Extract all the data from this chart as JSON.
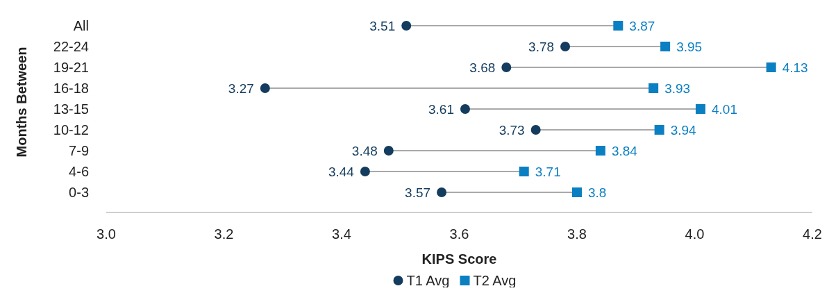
{
  "chart_data": {
    "type": "scatter",
    "orientation": "horizontal",
    "xlabel": "KIPS Score",
    "ylabel": "Months Between",
    "categories": [
      "All",
      "22-24",
      "19-21",
      "16-18",
      "13-15",
      "10-12",
      "7-9",
      "4-6",
      "0-3"
    ],
    "series": [
      {
        "name": "T1 Avg",
        "color": "#133c5e",
        "marker": "circle",
        "values": [
          3.51,
          3.78,
          3.68,
          3.27,
          3.61,
          3.73,
          3.48,
          3.44,
          3.57
        ]
      },
      {
        "name": "T2 Avg",
        "color": "#0a7fc2",
        "marker": "square",
        "values": [
          3.87,
          3.95,
          4.13,
          3.93,
          4.01,
          3.94,
          3.84,
          3.71,
          3.8
        ]
      }
    ],
    "xlim": [
      3,
      4.2
    ],
    "xticks": [
      {
        "value": 3,
        "label": "3.0"
      },
      {
        "value": 3.2,
        "label": "3.2"
      },
      {
        "value": 3.4,
        "label": "3.4"
      },
      {
        "value": 3.6,
        "label": "3.6"
      },
      {
        "value": 3.8,
        "label": "3.8"
      },
      {
        "value": 4,
        "label": "4.0"
      },
      {
        "value": 4.2,
        "label": "4.2"
      }
    ],
    "data_labels": true,
    "grid": false,
    "legend": "bottom"
  }
}
